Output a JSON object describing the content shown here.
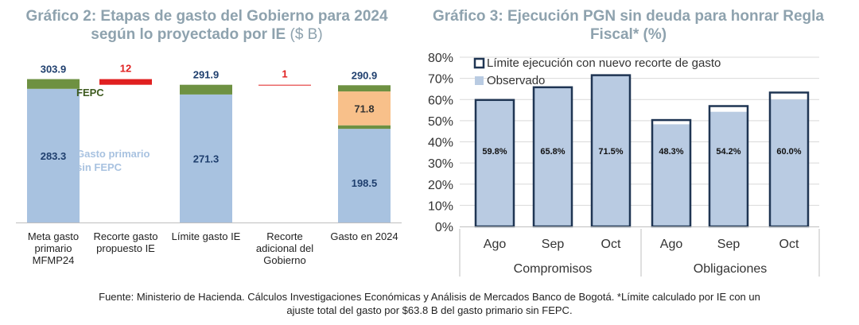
{
  "chart_data": [
    {
      "type": "bar",
      "stacked": true,
      "title": "Gráfico 2: Etapas de gasto del Gobierno para 2024 según lo proyectado por IE",
      "title_unit": "($ B)",
      "categories": [
        [
          "Meta gasto",
          "primario",
          "MFMP24"
        ],
        [
          "Recorte gasto",
          "propuesto IE"
        ],
        [
          "Límite gasto IE"
        ],
        [
          "Recorte",
          "adicional del",
          "Gobierno"
        ],
        [
          "Gasto en 2024"
        ]
      ],
      "labels": {
        "fepc": "FEPC",
        "gasto_primario": [
          "Gasto primario",
          "sin FEPC"
        ]
      },
      "stages": [
        {
          "kind": "stack",
          "base": 283.3,
          "base_label": "283.3",
          "fepc": 20.6,
          "total": 303.9,
          "total_label": "303.9"
        },
        {
          "kind": "cut",
          "value": 12,
          "value_label": "12",
          "level": 291.9
        },
        {
          "kind": "stack",
          "base": 271.3,
          "base_label": "271.3",
          "fepc": 20.6,
          "total": 291.9,
          "total_label": "291.9"
        },
        {
          "kind": "cut",
          "value": 1,
          "value_label": "1",
          "level": 290.9
        },
        {
          "kind": "stack3",
          "base": 198.5,
          "base_label": "198.5",
          "fepc_low": 7.5,
          "extra": 71.8,
          "extra_label": "71.8",
          "fepc_top": 13.1,
          "total": 290.9,
          "total_label": "290.9"
        }
      ],
      "ylim": [
        0,
        320
      ],
      "colors": {
        "base": "#a8c2e0",
        "fepc": "#6e9142",
        "extra": "#f8c08a",
        "cut": "#e02020",
        "total_label": "#1f3f6e",
        "cut_label": "#e02020",
        "base_label": "#1f3f6e",
        "fepc_label": "#3d5a1e",
        "gasto_label": "#a8c2e0"
      }
    },
    {
      "type": "bar",
      "title": "Gráfico 3: Ejecución PGN sin deuda para honrar Regla Fiscal* (%)",
      "categories": [
        "Ago",
        "Sep",
        "Oct",
        "Ago",
        "Sep",
        "Oct"
      ],
      "groups": [
        "Compromisos",
        "Obligaciones"
      ],
      "series": [
        {
          "name": "Observado",
          "values": [
            59.8,
            65.8,
            71.5,
            48.3,
            54.2,
            60.0
          ],
          "labels": [
            "59.8%",
            "65.8%",
            "71.5%",
            "48.3%",
            "54.2%",
            "60.0%"
          ]
        },
        {
          "name": "Límite ejecución con nuevo recorte de gasto",
          "values": [
            59.8,
            65.8,
            71.5,
            50.3,
            56.9,
            63.3
          ]
        }
      ],
      "yticks": [
        "0%",
        "10%",
        "20%",
        "30%",
        "40%",
        "50%",
        "60%",
        "70%",
        "80%"
      ],
      "ylim": [
        0,
        80
      ],
      "grid": true,
      "legend_position": "top-left",
      "colors": {
        "bar": "#b9cbe2",
        "limit": "#1f3553",
        "grid": "#d9d9d9"
      }
    }
  ],
  "footer": {
    "source_line1": "Fuente: Ministerio de Hacienda. Cálculos Investigaciones Económicas y Análisis de Mercados Banco de Bogotá. *Límite calculado por IE con un",
    "source_line2": "ajuste total del gasto por $63.8 B del gasto primario sin FEPC."
  }
}
